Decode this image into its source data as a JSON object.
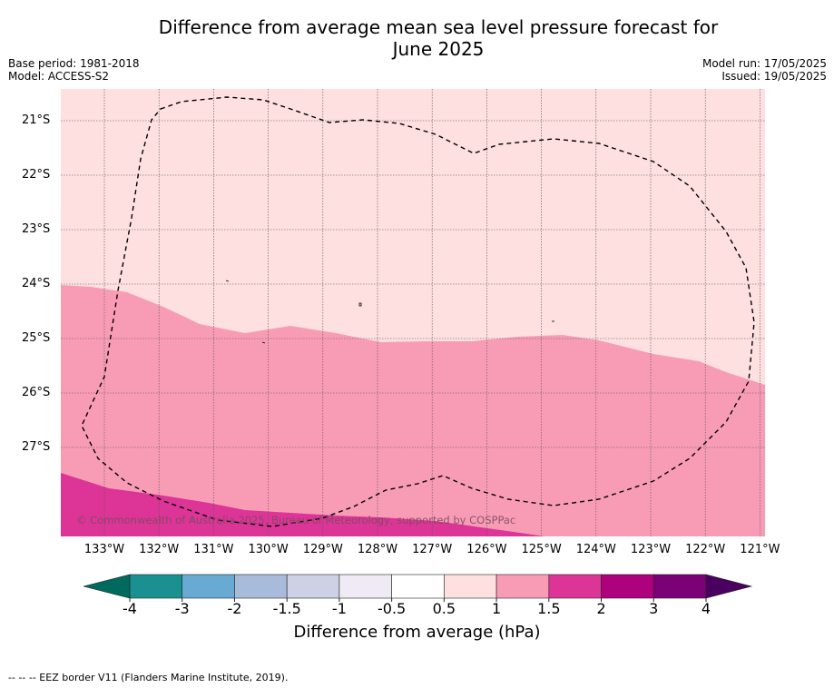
{
  "title": "Difference from average mean sea level pressure forecast for June 2025",
  "title_line1": "Difference from average mean sea level pressure forecast for",
  "title_line2": "June 2025",
  "meta_left": {
    "base_period": "Base period: 1981-2018",
    "model": "Model: ACCESS-S2"
  },
  "meta_right": {
    "model_run": "Model run: 17/05/2025",
    "issued": "Issued: 19/05/2025"
  },
  "map": {
    "latitude_labels": [
      "21°S",
      "22°S",
      "23°S",
      "24°S",
      "25°S",
      "26°S",
      "27°S"
    ],
    "longitude_labels": [
      "133°W",
      "132°W",
      "131°W",
      "130°W",
      "129°W",
      "128°W",
      "127°W",
      "126°W",
      "125°W",
      "124°W",
      "123°W",
      "122°W",
      "121°W"
    ],
    "copyright": "© Commonwealth of Australia 2025, Bureau of Meteorology, supported by COSPPac",
    "fill_bands": [
      {
        "range": "0.5 to 1",
        "color": "#fde0df"
      },
      {
        "range": "1 to 1.5",
        "color": "#f89cb6"
      },
      {
        "range": "1.5 to 2",
        "color": "#dc3597"
      }
    ]
  },
  "colorbar": {
    "tick_labels": [
      "-4",
      "-3",
      "-2",
      "-1.5",
      "-1",
      "-0.5",
      "0.5",
      "1",
      "1.5",
      "2",
      "3",
      "4"
    ],
    "colors": [
      "#1a9190",
      "#68aad3",
      "#a8bbdb",
      "#ced0e6",
      "#efeaf3",
      "#ffffff",
      "#fde0df",
      "#f89cb6",
      "#dc3597",
      "#ad017e",
      "#7b0177"
    ],
    "under_color": "#006a5f",
    "over_color": "#4a0060",
    "label": "Difference from average (hPa)"
  },
  "footer": "--  --  -- EEZ border V11 (Flanders Marine Institute, 2019)."
}
